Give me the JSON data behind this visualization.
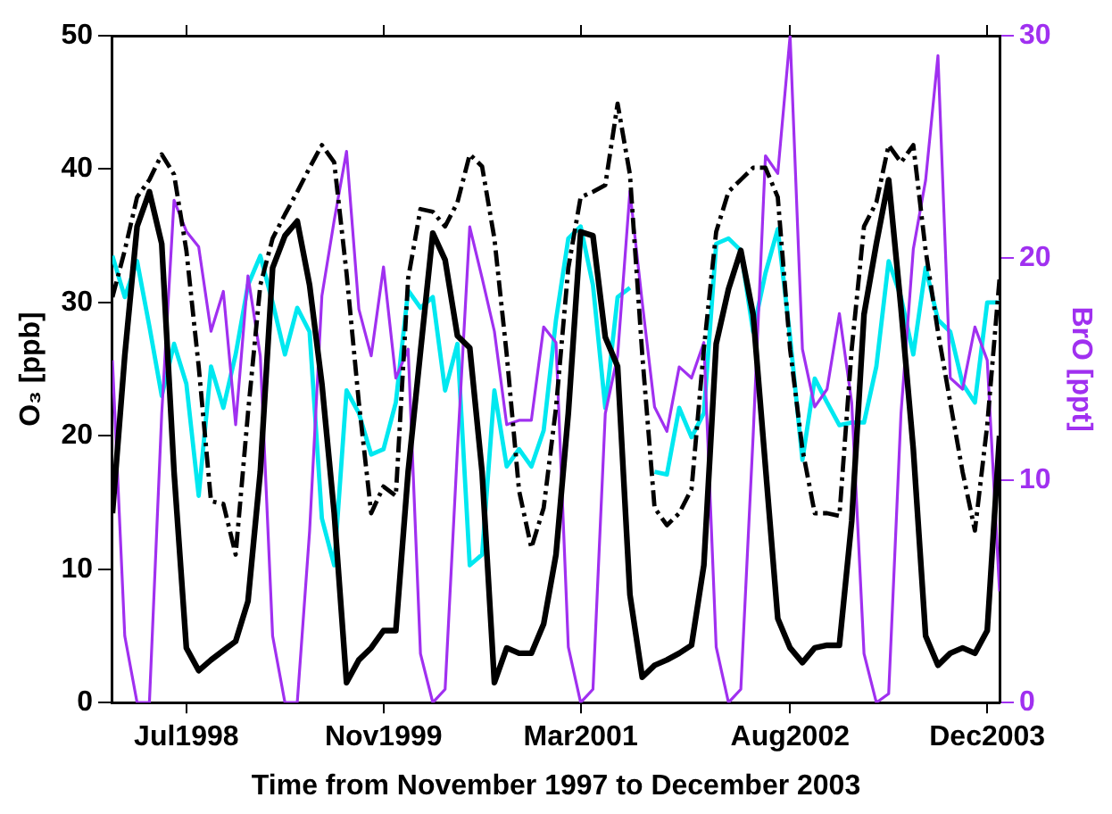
{
  "chart_data": {
    "type": "line",
    "xlabel": "Time from November 1997 to December 2003",
    "ylabel": "O₃ [ppb]",
    "y2label": "BrO [ppt]",
    "x": [
      "1998-01",
      "1998-02",
      "1998-03",
      "1998-04",
      "1998-05",
      "1998-06",
      "1998-07",
      "1998-08",
      "1998-09",
      "1998-10",
      "1998-11",
      "1998-12",
      "1999-01",
      "1999-02",
      "1999-03",
      "1999-04",
      "1999-05",
      "1999-06",
      "1999-07",
      "1999-08",
      "1999-09",
      "1999-10",
      "1999-11",
      "1999-12",
      "2000-01",
      "2000-02",
      "2000-03",
      "2000-04",
      "2000-05",
      "2000-06",
      "2000-07",
      "2000-08",
      "2000-09",
      "2000-10",
      "2000-11",
      "2000-12",
      "2001-01",
      "2001-02",
      "2001-03",
      "2001-04",
      "2001-05",
      "2001-06",
      "2001-07",
      "2001-08",
      "2001-09",
      "2001-10",
      "2001-11",
      "2001-12",
      "2002-01",
      "2002-02",
      "2002-03",
      "2002-04",
      "2002-05",
      "2002-06",
      "2002-07",
      "2002-08",
      "2002-09",
      "2002-10",
      "2002-11",
      "2002-12",
      "2003-01",
      "2003-02",
      "2003-03",
      "2003-04",
      "2003-05",
      "2003-06",
      "2003-07",
      "2003-08",
      "2003-09",
      "2003-10",
      "2003-11",
      "2003-12",
      "2004-01"
    ],
    "series": [
      {
        "color": "#00e8f0",
        "line_style": "solid",
        "values": [
          33.5,
          30.4,
          33.1,
          28.2,
          23.0,
          26.9,
          23.9,
          15.5,
          25.2,
          22.1,
          26.1,
          31.3,
          33.5,
          30.0,
          26.1,
          29.6,
          27.8,
          13.8,
          10.3,
          23.4,
          21.7,
          18.6,
          19.0,
          22.5,
          30.9,
          29.6,
          30.4,
          23.4,
          26.9,
          10.3,
          11.1,
          23.4,
          17.7,
          19.0,
          17.7,
          20.4,
          28.7,
          34.8,
          35.7,
          31.3,
          22.1,
          30.4,
          31.1,
          null,
          17.3,
          17.1,
          22.1,
          19.9,
          21.7,
          34.4,
          34.8,
          33.9,
          27.8,
          32.2,
          35.5,
          27.4,
          18.2,
          24.3,
          22.5,
          20.8,
          21.0,
          21.0,
          25.2,
          33.1,
          30.4,
          26.1,
          32.6,
          28.7,
          27.8,
          23.9,
          22.5,
          30.0,
          30.0
        ]
      },
      {
        "color": "#a030f0",
        "line_style": "solid",
        "axis": "y2",
        "values": [
          15.4,
          3.0,
          0,
          0,
          13.0,
          22.6,
          21.2,
          20.5,
          16.7,
          18.5,
          12.5,
          19.2,
          15.6,
          3.0,
          0,
          0,
          7.7,
          18.3,
          21.7,
          24.8,
          17.7,
          15.6,
          19.6,
          14.6,
          15.9,
          2.2,
          0,
          0.6,
          11.4,
          21.4,
          19.1,
          16.7,
          12.5,
          12.7,
          12.7,
          16.9,
          16.2,
          2.5,
          0,
          0.6,
          13.0,
          15.6,
          23.0,
          18.0,
          13.3,
          12.2,
          15.1,
          14.6,
          16.2,
          2.5,
          0,
          0.6,
          12.0,
          24.6,
          23.8,
          30,
          15.9,
          13.3,
          14.1,
          17.5,
          13.5,
          2.2,
          0,
          0.4,
          13.0,
          20.4,
          23.5,
          29.1,
          14.6,
          14.1,
          16.9,
          15.4,
          5
        ]
      },
      {
        "color": "#000000",
        "line_style": "dashed",
        "values": [
          30.4,
          33.9,
          37.9,
          39.2,
          41.1,
          39.6,
          33.9,
          25.2,
          15.1,
          14.9,
          11.1,
          21.7,
          31.3,
          34.8,
          36.6,
          38.3,
          40.1,
          41.8,
          40.5,
          32.2,
          22.5,
          14.2,
          16.2,
          15.5,
          31.8,
          37.0,
          36.8,
          35.7,
          37.5,
          41.1,
          40.2,
          34.8,
          26.1,
          15.9,
          11.6,
          14.6,
          22.1,
          32.6,
          37.9,
          38.3,
          38.8,
          44.9,
          39.6,
          26.1,
          14.6,
          13.3,
          14.2,
          16.0,
          26.5,
          35.3,
          38.3,
          39.2,
          40.1,
          40.1,
          37.9,
          26.5,
          19.0,
          14.2,
          14.2,
          14.0,
          26.5,
          35.7,
          37.5,
          41.8,
          40.5,
          41.8,
          33.9,
          27.8,
          22.5,
          17.3,
          12.9,
          20.8,
          31.8
        ]
      },
      {
        "color": "#000000",
        "line_style": "solid",
        "values": [
          14.2,
          26,
          35.7,
          38.3,
          34.4,
          17.3,
          4.1,
          2.4,
          3.2,
          3.9,
          4.6,
          7.6,
          17.3,
          32.6,
          35,
          36.1,
          31.3,
          23.9,
          14.2,
          1.5,
          3.2,
          4.1,
          5.4,
          5.4,
          17.3,
          26.3,
          35.2,
          33.2,
          27.5,
          26.6,
          17.3,
          1.5,
          4.1,
          3.7,
          3.7,
          5.9,
          11.1,
          21.7,
          35.3,
          35.0,
          27.4,
          25.2,
          8.1,
          1.9,
          2.8,
          3.2,
          3.7,
          4.3,
          10.3,
          26.9,
          31,
          33.9,
          29.1,
          17.7,
          6.3,
          4.1,
          3.0,
          4.1,
          4.3,
          4.3,
          13.6,
          29.1,
          34.4,
          39.2,
          29.6,
          19.0,
          5.0,
          2.8,
          3.7,
          4.1,
          3.7,
          5.4,
          20
        ]
      }
    ],
    "xlim": [
      "1998-01",
      "2004-01"
    ],
    "xticks": [
      {
        "value": "1998-07",
        "label": "Jul1998"
      },
      {
        "value": "1999-11",
        "label": "Nov1999"
      },
      {
        "value": "2001-03",
        "label": "Mar2001"
      },
      {
        "value": "2002-08",
        "label": "Aug2002"
      },
      {
        "value": "2003-12",
        "label": "Dec2003"
      }
    ],
    "ylim": [
      0,
      50
    ],
    "yticks": [
      0,
      10,
      20,
      30,
      40,
      50
    ],
    "y2lim": [
      0,
      30
    ],
    "y2ticks": [
      0,
      10,
      20,
      30
    ],
    "grid": false,
    "legend": false,
    "marker": "none"
  }
}
